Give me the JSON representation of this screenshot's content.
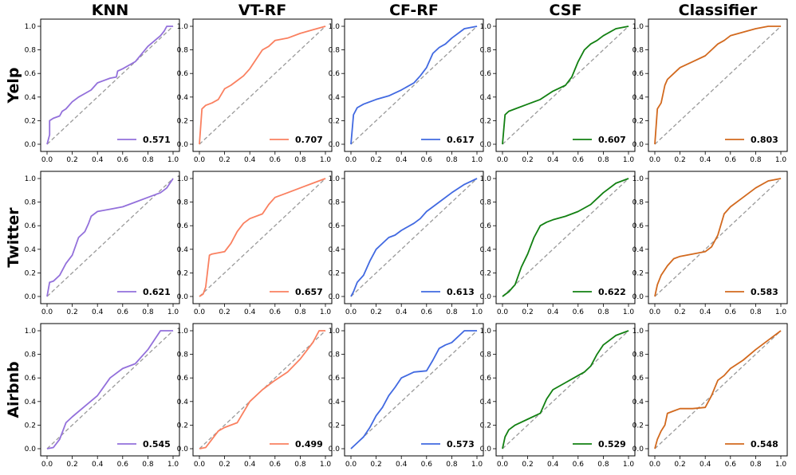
{
  "chart_data": {
    "type": "line",
    "layout_note": "grid 3x5 of ROC plots",
    "columns": [
      "KNN",
      "VT-RF",
      "CF-RF",
      "CSF",
      "Classifier"
    ],
    "rows": [
      "Yelp",
      "Twitter",
      "Airbnb"
    ],
    "colors": [
      "#9370DB",
      "#FA8060",
      "#4169E1",
      "#128012",
      "#D2691E"
    ],
    "xlim": [
      0,
      1
    ],
    "ylim": [
      0,
      1
    ],
    "xticks": [
      "0.0",
      "0.2",
      "0.4",
      "0.6",
      "0.8",
      "1.0"
    ],
    "yticks": [
      "0.0",
      "0.2",
      "0.4",
      "0.6",
      "0.8",
      "1.0"
    ],
    "diagonal": true,
    "legend_position": "lower right",
    "panels": [
      [
        {
          "legend": "0.571",
          "x": [
            0,
            0.02,
            0.02,
            0.05,
            0.1,
            0.12,
            0.15,
            0.2,
            0.25,
            0.3,
            0.35,
            0.4,
            0.5,
            0.55,
            0.56,
            0.6,
            0.7,
            0.8,
            0.9,
            0.93,
            0.95,
            1
          ],
          "y": [
            0,
            0.08,
            0.2,
            0.22,
            0.24,
            0.28,
            0.3,
            0.36,
            0.4,
            0.43,
            0.46,
            0.52,
            0.56,
            0.57,
            0.62,
            0.64,
            0.7,
            0.83,
            0.92,
            0.96,
            1,
            1
          ]
        },
        {
          "legend": "0.707",
          "x": [
            0,
            0.02,
            0.05,
            0.1,
            0.15,
            0.2,
            0.25,
            0.3,
            0.35,
            0.4,
            0.45,
            0.5,
            0.55,
            0.6,
            0.7,
            0.8,
            0.9,
            1
          ],
          "y": [
            0,
            0.3,
            0.33,
            0.35,
            0.38,
            0.47,
            0.5,
            0.54,
            0.58,
            0.64,
            0.72,
            0.8,
            0.83,
            0.88,
            0.9,
            0.94,
            0.97,
            1
          ]
        },
        {
          "legend": "0.617",
          "x": [
            0,
            0.02,
            0.05,
            0.1,
            0.2,
            0.3,
            0.4,
            0.5,
            0.55,
            0.6,
            0.65,
            0.7,
            0.75,
            0.8,
            0.9,
            1
          ],
          "y": [
            0,
            0.25,
            0.31,
            0.34,
            0.38,
            0.41,
            0.46,
            0.52,
            0.58,
            0.65,
            0.77,
            0.82,
            0.85,
            0.9,
            0.98,
            1
          ]
        },
        {
          "legend": "0.607",
          "x": [
            0,
            0.02,
            0.05,
            0.1,
            0.2,
            0.3,
            0.4,
            0.5,
            0.55,
            0.6,
            0.65,
            0.7,
            0.75,
            0.8,
            0.9,
            1
          ],
          "y": [
            0,
            0.25,
            0.28,
            0.3,
            0.34,
            0.38,
            0.45,
            0.5,
            0.57,
            0.7,
            0.8,
            0.85,
            0.88,
            0.92,
            0.98,
            1
          ]
        },
        {
          "legend": "0.803",
          "x": [
            0,
            0.02,
            0.05,
            0.08,
            0.1,
            0.15,
            0.2,
            0.3,
            0.4,
            0.45,
            0.5,
            0.55,
            0.6,
            0.7,
            0.8,
            0.9,
            1
          ],
          "y": [
            0,
            0.3,
            0.35,
            0.5,
            0.55,
            0.6,
            0.65,
            0.7,
            0.75,
            0.8,
            0.85,
            0.88,
            0.92,
            0.95,
            0.98,
            1,
            1
          ]
        }
      ],
      [
        {
          "legend": "0.621",
          "x": [
            0,
            0.02,
            0.05,
            0.1,
            0.15,
            0.2,
            0.25,
            0.3,
            0.33,
            0.35,
            0.4,
            0.5,
            0.6,
            0.7,
            0.8,
            0.9,
            0.95,
            1
          ],
          "y": [
            0,
            0.12,
            0.13,
            0.18,
            0.28,
            0.35,
            0.5,
            0.55,
            0.62,
            0.68,
            0.72,
            0.74,
            0.76,
            0.8,
            0.84,
            0.88,
            0.92,
            1
          ]
        },
        {
          "legend": "0.657",
          "x": [
            0,
            0.03,
            0.05,
            0.08,
            0.1,
            0.2,
            0.25,
            0.3,
            0.35,
            0.4,
            0.5,
            0.55,
            0.6,
            0.7,
            0.8,
            0.9,
            1
          ],
          "y": [
            0,
            0.02,
            0.08,
            0.35,
            0.36,
            0.38,
            0.45,
            0.55,
            0.62,
            0.66,
            0.7,
            0.78,
            0.84,
            0.88,
            0.92,
            0.96,
            1
          ]
        },
        {
          "legend": "0.613",
          "x": [
            0,
            0.02,
            0.05,
            0.1,
            0.15,
            0.2,
            0.25,
            0.3,
            0.35,
            0.4,
            0.5,
            0.55,
            0.6,
            0.7,
            0.8,
            0.9,
            1
          ],
          "y": [
            0,
            0.04,
            0.12,
            0.18,
            0.3,
            0.4,
            0.45,
            0.5,
            0.52,
            0.56,
            0.62,
            0.66,
            0.72,
            0.8,
            0.88,
            0.95,
            1
          ]
        },
        {
          "legend": "0.622",
          "x": [
            0,
            0.05,
            0.1,
            0.15,
            0.2,
            0.25,
            0.3,
            0.35,
            0.4,
            0.5,
            0.6,
            0.7,
            0.8,
            0.9,
            1
          ],
          "y": [
            0,
            0.04,
            0.1,
            0.25,
            0.36,
            0.5,
            0.6,
            0.63,
            0.65,
            0.68,
            0.72,
            0.78,
            0.88,
            0.96,
            1
          ]
        },
        {
          "legend": "0.583",
          "x": [
            0,
            0.02,
            0.05,
            0.1,
            0.15,
            0.2,
            0.3,
            0.4,
            0.45,
            0.5,
            0.55,
            0.6,
            0.7,
            0.8,
            0.9,
            1
          ],
          "y": [
            0,
            0.1,
            0.18,
            0.26,
            0.32,
            0.34,
            0.36,
            0.38,
            0.42,
            0.52,
            0.7,
            0.76,
            0.84,
            0.92,
            0.98,
            1
          ]
        }
      ],
      [
        {
          "legend": "0.545",
          "x": [
            0,
            0.05,
            0.1,
            0.15,
            0.2,
            0.3,
            0.4,
            0.5,
            0.6,
            0.7,
            0.8,
            0.9,
            1
          ],
          "y": [
            0,
            0.01,
            0.08,
            0.22,
            0.27,
            0.36,
            0.45,
            0.6,
            0.68,
            0.72,
            0.84,
            1,
            1
          ]
        },
        {
          "legend": "0.499",
          "x": [
            0,
            0.05,
            0.1,
            0.15,
            0.2,
            0.3,
            0.4,
            0.5,
            0.6,
            0.7,
            0.8,
            0.9,
            0.95,
            1
          ],
          "y": [
            0,
            0.01,
            0.08,
            0.15,
            0.18,
            0.22,
            0.4,
            0.5,
            0.58,
            0.65,
            0.76,
            0.9,
            1,
            1
          ]
        },
        {
          "legend": "0.573",
          "x": [
            0,
            0.05,
            0.1,
            0.15,
            0.2,
            0.25,
            0.3,
            0.35,
            0.4,
            0.5,
            0.6,
            0.65,
            0.7,
            0.75,
            0.8,
            0.9,
            1
          ],
          "y": [
            0,
            0.05,
            0.1,
            0.18,
            0.28,
            0.35,
            0.45,
            0.52,
            0.6,
            0.65,
            0.66,
            0.75,
            0.85,
            0.88,
            0.9,
            1,
            1
          ]
        },
        {
          "legend": "0.529",
          "x": [
            0,
            0.02,
            0.05,
            0.1,
            0.2,
            0.3,
            0.35,
            0.4,
            0.5,
            0.6,
            0.65,
            0.7,
            0.75,
            0.8,
            0.9,
            1
          ],
          "y": [
            0,
            0.1,
            0.16,
            0.2,
            0.25,
            0.3,
            0.42,
            0.5,
            0.56,
            0.62,
            0.65,
            0.7,
            0.8,
            0.88,
            0.96,
            1
          ]
        },
        {
          "legend": "0.548",
          "x": [
            0,
            0.02,
            0.05,
            0.08,
            0.1,
            0.15,
            0.2,
            0.3,
            0.4,
            0.45,
            0.5,
            0.55,
            0.6,
            0.7,
            0.8,
            0.9,
            1
          ],
          "y": [
            0,
            0.08,
            0.15,
            0.2,
            0.3,
            0.32,
            0.34,
            0.34,
            0.35,
            0.45,
            0.58,
            0.62,
            0.68,
            0.75,
            0.84,
            0.92,
            1
          ]
        }
      ]
    ]
  }
}
